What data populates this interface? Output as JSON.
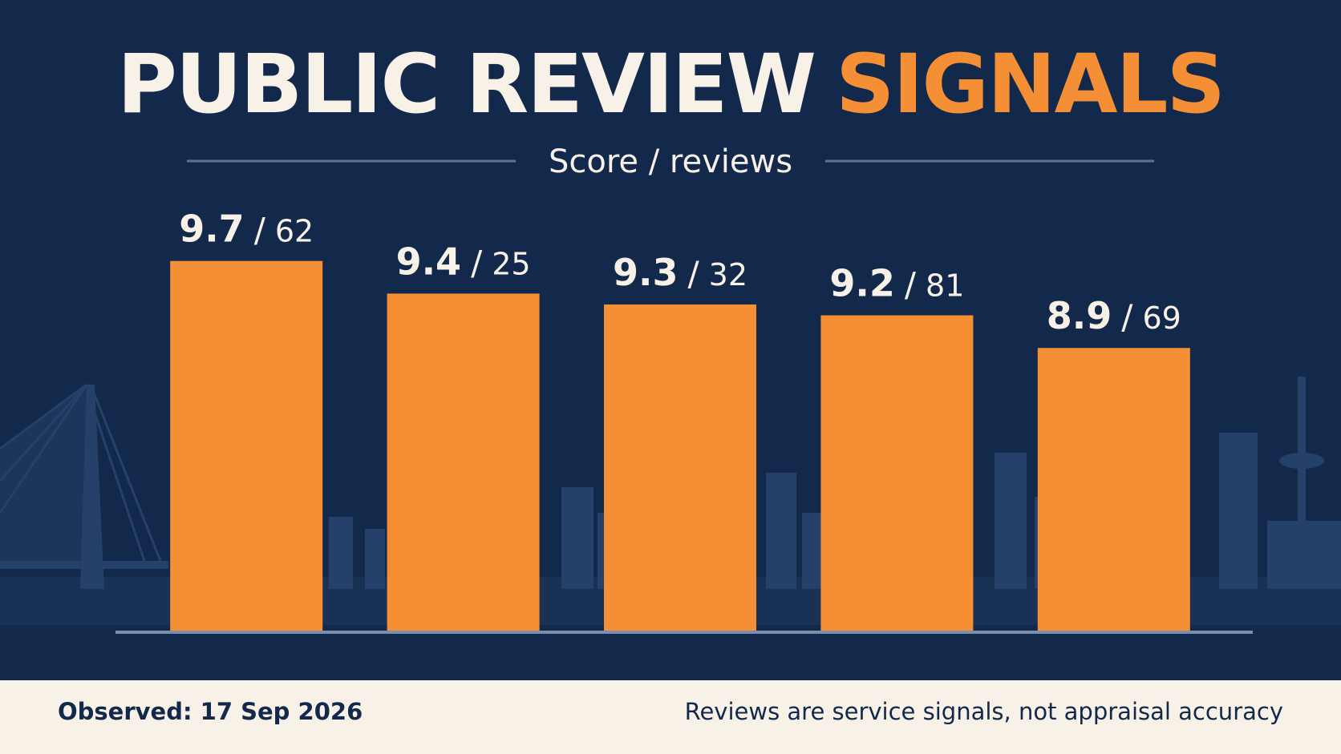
{
  "chart_data": {
    "type": "bar",
    "title": [
      "PUBLIC REVIEW",
      "SIGNALS"
    ],
    "subtitle": "Score / reviews",
    "categories": [
      null,
      null,
      null,
      null,
      null
    ],
    "values": [
      9.7,
      9.4,
      9.3,
      9.2,
      8.9
    ],
    "reviews": [
      62,
      25,
      32,
      81,
      69
    ],
    "label_separator": "/",
    "color": "#f58f35",
    "ylim": [
      6.3,
      10
    ],
    "footer_left": "Observed: 17 Sep 2026",
    "footer_right": "Reviews are service signals, not appraisal accuracy"
  }
}
